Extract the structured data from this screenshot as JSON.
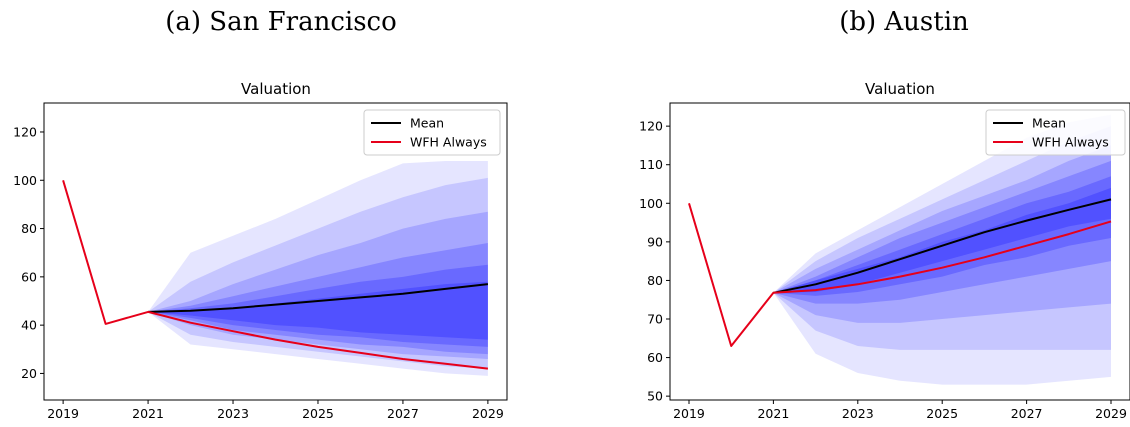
{
  "chart_data": [
    {
      "type": "area",
      "caption": "(a) San Francisco",
      "title": "Valuation",
      "xlabel": "",
      "ylabel": "",
      "xlim": [
        2018.55,
        2029.45
      ],
      "ylim": [
        9,
        132
      ],
      "xticks": [
        2019,
        2021,
        2023,
        2025,
        2027,
        2029
      ],
      "yticks": [
        20,
        40,
        60,
        80,
        100,
        120
      ],
      "grid": false,
      "legend_position": "top-right",
      "fan_color": "#1414ff",
      "series": [
        {
          "name": "Mean",
          "color": "#000000",
          "x": [
            2021,
            2022,
            2023,
            2024,
            2025,
            2026,
            2027,
            2028,
            2029
          ],
          "y": [
            45.5,
            46,
            47,
            48.5,
            50,
            51.5,
            53,
            55,
            57
          ]
        },
        {
          "name": "WFH Always",
          "color": "#e6001a",
          "x": [
            2019,
            2020,
            2021,
            2022,
            2023,
            2024,
            2025,
            2026,
            2027,
            2028,
            2029
          ],
          "y": [
            100,
            40.5,
            45.5,
            41,
            37.5,
            34,
            31,
            28.5,
            26,
            24,
            22
          ]
        }
      ],
      "fan_bands": [
        {
          "x": [
            2021,
            2022,
            2023,
            2024,
            2025,
            2026,
            2027,
            2028,
            2029
          ],
          "low": [
            45.5,
            32,
            30,
            28,
            26,
            24,
            22,
            20,
            19
          ],
          "high": [
            45.5,
            70,
            77,
            84,
            92,
            100,
            107,
            108,
            108
          ]
        },
        {
          "x": [
            2021,
            2022,
            2023,
            2024,
            2025,
            2026,
            2027,
            2028,
            2029
          ],
          "low": [
            45.5,
            36,
            33,
            31,
            29,
            27,
            25,
            23,
            22
          ],
          "high": [
            45.5,
            58,
            66,
            73,
            80,
            87,
            93,
            98,
            101
          ]
        },
        {
          "x": [
            2021,
            2022,
            2023,
            2024,
            2025,
            2026,
            2027,
            2028,
            2029
          ],
          "low": [
            45.5,
            40,
            36,
            34,
            32,
            30,
            28,
            27,
            26
          ],
          "high": [
            45.5,
            50,
            57,
            63,
            69,
            74,
            80,
            84,
            87
          ]
        },
        {
          "x": [
            2021,
            2022,
            2023,
            2024,
            2025,
            2026,
            2027,
            2028,
            2029
          ],
          "low": [
            45.5,
            42,
            38,
            36,
            34,
            32,
            31,
            29,
            28
          ],
          "high": [
            45.5,
            48,
            52,
            56,
            60,
            64,
            68,
            71,
            74
          ]
        },
        {
          "x": [
            2021,
            2022,
            2023,
            2024,
            2025,
            2026,
            2027,
            2028,
            2029
          ],
          "low": [
            45.5,
            43,
            40,
            38,
            36,
            35,
            33,
            32,
            31
          ],
          "high": [
            45.5,
            47,
            49,
            52,
            55,
            58,
            60,
            63,
            65
          ]
        },
        {
          "x": [
            2021,
            2022,
            2023,
            2024,
            2025,
            2026,
            2027,
            2028,
            2029
          ],
          "low": [
            45.5,
            44,
            42,
            40,
            39,
            37,
            36,
            35,
            34
          ],
          "high": [
            45.5,
            46,
            47,
            49,
            51,
            53,
            55,
            57,
            58
          ]
        }
      ]
    },
    {
      "type": "area",
      "caption": "(b) Austin",
      "title": "Valuation",
      "xlabel": "",
      "ylabel": "",
      "xlim": [
        2018.55,
        2029.45
      ],
      "ylim": [
        49,
        126
      ],
      "xticks": [
        2019,
        2021,
        2023,
        2025,
        2027,
        2029
      ],
      "yticks": [
        50,
        60,
        70,
        80,
        90,
        100,
        110,
        120
      ],
      "grid": false,
      "legend_position": "top-right",
      "fan_color": "#1414ff",
      "series": [
        {
          "name": "Mean",
          "color": "#000000",
          "x": [
            2021,
            2022,
            2023,
            2024,
            2025,
            2026,
            2027,
            2028,
            2029
          ],
          "y": [
            76.8,
            79,
            82,
            85.5,
            89,
            92.5,
            95.5,
            98.3,
            101
          ]
        },
        {
          "name": "WFH Always",
          "color": "#e6001a",
          "x": [
            2019,
            2020,
            2021,
            2022,
            2023,
            2024,
            2025,
            2026,
            2027,
            2028,
            2029
          ],
          "y": [
            100,
            63,
            76.8,
            77.5,
            79,
            81,
            83.3,
            86,
            89,
            92,
            95.3
          ]
        }
      ],
      "fan_bands": [
        {
          "x": [
            2021,
            2022,
            2023,
            2024,
            2025,
            2026,
            2027,
            2028,
            2029
          ],
          "low": [
            76.8,
            61,
            56,
            54,
            53,
            53,
            53,
            54,
            55
          ],
          "high": [
            76.8,
            87,
            93,
            99,
            105,
            111,
            117,
            121,
            123
          ]
        },
        {
          "x": [
            2021,
            2022,
            2023,
            2024,
            2025,
            2026,
            2027,
            2028,
            2029
          ],
          "low": [
            76.8,
            67,
            63,
            62,
            62,
            62,
            62,
            62,
            62
          ],
          "high": [
            76.8,
            85,
            91,
            96,
            101,
            106,
            111,
            116,
            120
          ]
        },
        {
          "x": [
            2021,
            2022,
            2023,
            2024,
            2025,
            2026,
            2027,
            2028,
            2029
          ],
          "low": [
            76.8,
            71,
            69,
            69,
            70,
            71,
            72,
            73,
            74
          ],
          "high": [
            76.8,
            83,
            88,
            93,
            98,
            102,
            106,
            111,
            115
          ]
        },
        {
          "x": [
            2021,
            2022,
            2023,
            2024,
            2025,
            2026,
            2027,
            2028,
            2029
          ],
          "low": [
            76.8,
            74,
            74,
            75,
            77,
            79,
            81,
            83,
            85
          ],
          "high": [
            76.8,
            81,
            86,
            91,
            95,
            99,
            103,
            107,
            111
          ]
        },
        {
          "x": [
            2021,
            2022,
            2023,
            2024,
            2025,
            2026,
            2027,
            2028,
            2029
          ],
          "low": [
            76.8,
            76,
            77,
            79,
            81,
            84,
            86,
            89,
            91
          ],
          "high": [
            76.8,
            80,
            84,
            88,
            92,
            96,
            100,
            103,
            107
          ]
        },
        {
          "x": [
            2021,
            2022,
            2023,
            2024,
            2025,
            2026,
            2027,
            2028,
            2029
          ],
          "low": [
            76.8,
            77,
            79,
            82,
            85,
            88,
            91,
            94,
            96
          ],
          "high": [
            76.8,
            80,
            83,
            86,
            90,
            93,
            97,
            100,
            104
          ]
        }
      ]
    }
  ]
}
